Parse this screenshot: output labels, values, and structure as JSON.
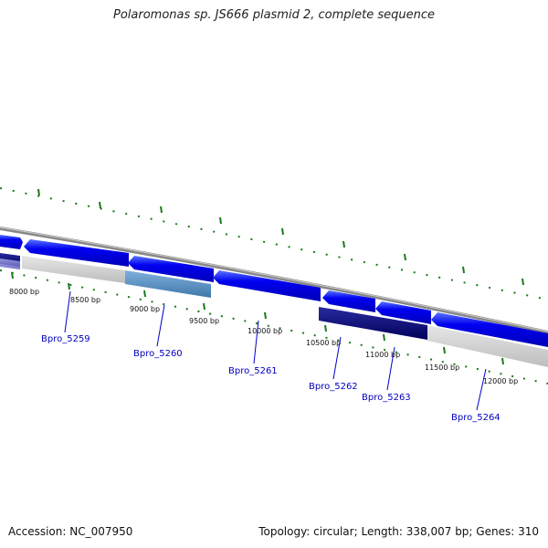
{
  "title": "Polaromonas sp. JS666 plasmid 2, complete sequence",
  "footer": {
    "accession_label": "Accession:",
    "accession": "NC_007950",
    "topology_label": "Topology:",
    "topology": "circular",
    "length_label": "Length:",
    "length": "338,007 bp",
    "genes_label": "Genes:",
    "genes": "310"
  },
  "ruler": [
    {
      "bp": 8000,
      "label": "8000 bp"
    },
    {
      "bp": 8500,
      "label": "8500 bp"
    },
    {
      "bp": 9000,
      "label": "9000 bp"
    },
    {
      "bp": 9500,
      "label": "9500 bp"
    },
    {
      "bp": 10000,
      "label": "10000 bp"
    },
    {
      "bp": 10500,
      "label": "10500 bp"
    },
    {
      "bp": 11000,
      "label": "11000 bp"
    },
    {
      "bp": 11500,
      "label": "11500 bp"
    },
    {
      "bp": 12000,
      "label": "12000 bp"
    }
  ],
  "genes_list": [
    {
      "label": "",
      "start": 7000,
      "end": 7850,
      "strand": "reverse"
    },
    {
      "label": "Bpro_5259",
      "start": 7900,
      "end": 8780,
      "strand": "reverse"
    },
    {
      "label": "Bpro_5260",
      "start": 8800,
      "end": 9520,
      "strand": "reverse"
    },
    {
      "label": "Bpro_5261",
      "start": 9540,
      "end": 10430,
      "strand": "reverse"
    },
    {
      "label": "Bpro_5262",
      "start": 10470,
      "end": 10920,
      "strand": "reverse"
    },
    {
      "label": "Bpro_5263",
      "start": 10940,
      "end": 11420,
      "strand": "reverse"
    },
    {
      "label": "Bpro_5264",
      "start": 11440,
      "end": 12500,
      "strand": "reverse"
    }
  ],
  "colors": {
    "gene": "#0000ee",
    "gene_highlight": "#3a5cff",
    "backbone": "#999999",
    "ruler_tick": "#1a7a1a",
    "label_line": "#0000cc"
  }
}
